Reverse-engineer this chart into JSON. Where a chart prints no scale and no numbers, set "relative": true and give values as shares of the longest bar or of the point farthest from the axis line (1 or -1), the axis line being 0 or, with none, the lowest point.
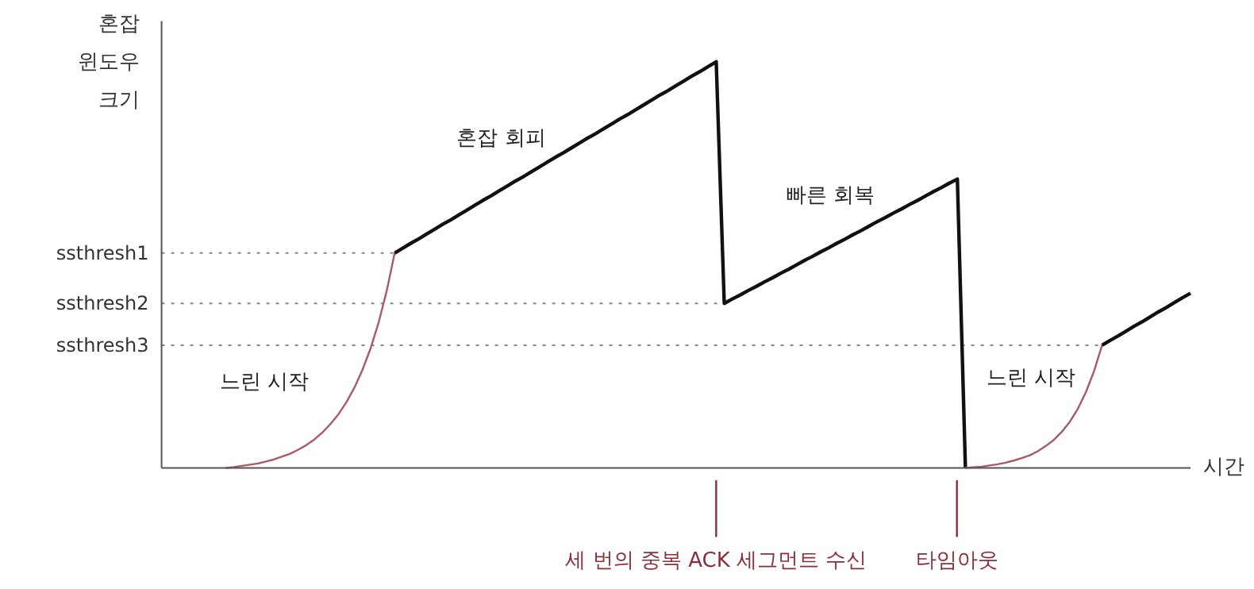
{
  "chart_data": {
    "type": "line",
    "relative": true,
    "ylabel": "혼잡\n윈도우\n크기",
    "xlabel": "시간",
    "grid": false,
    "line_style": "solid",
    "categories": [
      null,
      null,
      null,
      null,
      null,
      null,
      null,
      null,
      null,
      null,
      null,
      null,
      null,
      null,
      null,
      null,
      null,
      null,
      null,
      null,
      null,
      null,
      null,
      null,
      null,
      null,
      null,
      null,
      null,
      null,
      null,
      null,
      null,
      null,
      null,
      null,
      null,
      null,
      null,
      null,
      null,
      null,
      null,
      null,
      null,
      null,
      null,
      null,
      null,
      null,
      null,
      null,
      null,
      null,
      null,
      null,
      null,
      null,
      null,
      null,
      null,
      null,
      null,
      null,
      null,
      null,
      null,
      null,
      null,
      null,
      null,
      null,
      null,
      null,
      null,
      null,
      null,
      null,
      null,
      null,
      null,
      null,
      null,
      null,
      null,
      null,
      null,
      null,
      null,
      null,
      null,
      null,
      null,
      null,
      null,
      null,
      null,
      null,
      null,
      null,
      null,
      null,
      null,
      null,
      null,
      null,
      null,
      null,
      null,
      null,
      null,
      null,
      null,
      null,
      null,
      null,
      null,
      null,
      null,
      null,
      null,
      null,
      null,
      null,
      null,
      null,
      null,
      null,
      null
    ],
    "series": [
      {
        "color": "#a85b66",
        "values": [
          null,
          null,
          null,
          null,
          null,
          null,
          null,
          null,
          0,
          0.002,
          0.005,
          0.008,
          0.011,
          0.016,
          0.021,
          0.028,
          0.035,
          0.045,
          0.056,
          0.07,
          0.087,
          0.108,
          0.132,
          0.162,
          0.198,
          0.242,
          0.294,
          0.358,
          0.435,
          0.529,
          null,
          null,
          null,
          null,
          null,
          null,
          null,
          null,
          null,
          null,
          null,
          null,
          null,
          null,
          null,
          null,
          null,
          null,
          null,
          null,
          null,
          null,
          null,
          null,
          null,
          null,
          null,
          null,
          null,
          null,
          null,
          null,
          null,
          null,
          null,
          null,
          null,
          null,
          null,
          null,
          null,
          null,
          null,
          null,
          null,
          null,
          null,
          null,
          null,
          null,
          null,
          null,
          null,
          null,
          null,
          null,
          null,
          null,
          null,
          null,
          null,
          null,
          null,
          null,
          null,
          null,
          null,
          null,
          null,
          null,
          null,
          null,
          null,
          null,
          null,
          null,
          null,
          null,
          null,
          null,
          null,
          null,
          null,
          null,
          null,
          null,
          null,
          null,
          null,
          null,
          null,
          null,
          null,
          null,
          null,
          null,
          null,
          null,
          null
        ]
      },
      {
        "color": "#111111",
        "values": [
          null,
          null,
          null,
          null,
          null,
          null,
          null,
          null,
          null,
          null,
          null,
          null,
          null,
          null,
          null,
          null,
          null,
          null,
          null,
          null,
          null,
          null,
          null,
          null,
          null,
          null,
          null,
          null,
          null,
          0.529,
          0.541,
          0.553,
          0.564,
          0.576,
          0.588,
          0.6,
          0.611,
          0.623,
          0.635,
          0.647,
          0.659,
          0.67,
          0.682,
          0.694,
          0.706,
          0.717,
          0.729,
          0.741,
          0.753,
          0.765,
          0.776,
          0.788,
          0.8,
          0.812,
          0.823,
          0.835,
          0.847,
          0.859,
          0.87,
          0.882,
          0.894,
          0.906,
          0.918,
          0.929,
          0.941,
          0.953,
          0.965,
          0.976,
          0.988,
          1,
          0.405,
          0.416,
          0.426,
          0.437,
          0.447,
          0.458,
          0.468,
          0.479,
          0.489,
          0.5,
          0.511,
          0.521,
          0.532,
          0.542,
          0.553,
          0.563,
          0.574,
          0.584,
          0.595,
          0.606,
          0.616,
          0.627,
          0.637,
          0.648,
          0.658,
          0.669,
          0.68,
          0.69,
          0.701,
          0.711,
          0,
          null,
          null,
          null,
          null,
          null,
          null,
          null,
          null,
          null,
          null,
          null,
          null,
          null,
          null,
          null,
          null,
          null,
          null,
          null,
          null,
          null,
          null,
          null,
          null,
          null,
          null,
          null,
          null
        ]
      },
      {
        "color": "#a85b66",
        "values": [
          null,
          null,
          null,
          null,
          null,
          null,
          null,
          null,
          null,
          null,
          null,
          null,
          null,
          null,
          null,
          null,
          null,
          null,
          null,
          null,
          null,
          null,
          null,
          null,
          null,
          null,
          null,
          null,
          null,
          null,
          null,
          null,
          null,
          null,
          null,
          null,
          null,
          null,
          null,
          null,
          null,
          null,
          null,
          null,
          null,
          null,
          null,
          null,
          null,
          null,
          null,
          null,
          null,
          null,
          null,
          null,
          null,
          null,
          null,
          null,
          null,
          null,
          null,
          null,
          null,
          null,
          null,
          null,
          null,
          null,
          null,
          null,
          null,
          null,
          null,
          null,
          null,
          null,
          null,
          null,
          null,
          null,
          null,
          null,
          null,
          null,
          null,
          null,
          null,
          null,
          null,
          null,
          null,
          null,
          null,
          null,
          null,
          null,
          null,
          null,
          0,
          0.0015,
          0.003,
          0.006,
          0.009,
          0.013,
          0.018,
          0.024,
          0.031,
          0.041,
          0.054,
          0.069,
          0.089,
          0.114,
          0.146,
          0.187,
          0.238,
          0.302,
          null,
          null,
          null,
          null,
          null,
          null,
          null,
          null,
          null,
          null,
          null
        ]
      },
      {
        "color": "#111111",
        "values": [
          null,
          null,
          null,
          null,
          null,
          null,
          null,
          null,
          null,
          null,
          null,
          null,
          null,
          null,
          null,
          null,
          null,
          null,
          null,
          null,
          null,
          null,
          null,
          null,
          null,
          null,
          null,
          null,
          null,
          null,
          null,
          null,
          null,
          null,
          null,
          null,
          null,
          null,
          null,
          null,
          null,
          null,
          null,
          null,
          null,
          null,
          null,
          null,
          null,
          null,
          null,
          null,
          null,
          null,
          null,
          null,
          null,
          null,
          null,
          null,
          null,
          null,
          null,
          null,
          null,
          null,
          null,
          null,
          null,
          null,
          null,
          null,
          null,
          null,
          null,
          null,
          null,
          null,
          null,
          null,
          null,
          null,
          null,
          null,
          null,
          null,
          null,
          null,
          null,
          null,
          null,
          null,
          null,
          null,
          null,
          null,
          null,
          null,
          null,
          null,
          null,
          null,
          null,
          null,
          null,
          null,
          null,
          null,
          null,
          null,
          null,
          null,
          null,
          null,
          null,
          null,
          null,
          0.302,
          0.314,
          0.325,
          0.337,
          0.349,
          0.36,
          0.372,
          0.384,
          0.395,
          0.407,
          0.419,
          0.43
        ]
      }
    ],
    "ref_lines": [
      {
        "axis": "y",
        "value": 0.529,
        "label": "ssthresh1",
        "color": "#888888",
        "line_style": "dotted"
      },
      {
        "axis": "y",
        "value": 0.405,
        "label": "ssthresh2",
        "color": "#888888",
        "line_style": "dotted"
      },
      {
        "axis": "y",
        "value": 0.302,
        "label": "ssthresh3",
        "color": "#888888",
        "line_style": "dotted"
      }
    ],
    "annotations": [
      "느린 시작",
      "혼잡 회피",
      "빠른 회복",
      "느린 시작",
      "세 번의 중복 ACK 세그먼트 수신",
      "타임아웃"
    ]
  }
}
